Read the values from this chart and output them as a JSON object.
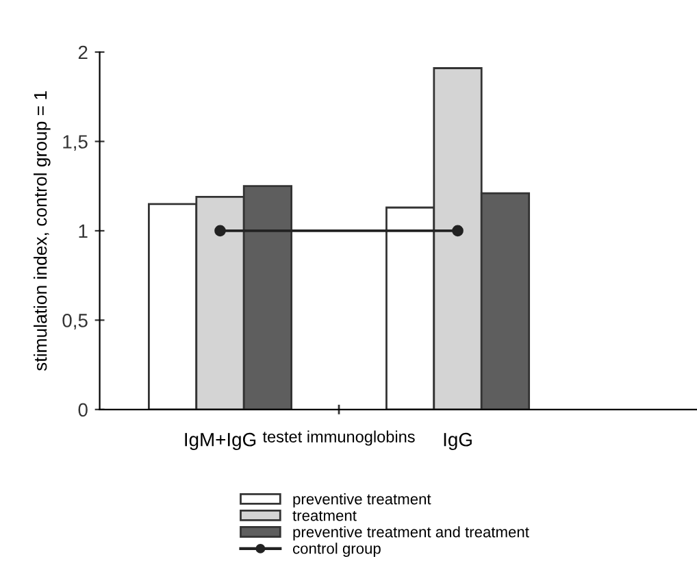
{
  "chart_data": {
    "type": "bar",
    "xlabel": "testet immunoglobins",
    "ylabel": "stimulation index, control group = 1",
    "categories": [
      "IgM+IgG",
      "IgG"
    ],
    "series": [
      {
        "name": "preventive treatment",
        "color": "#ffffff",
        "values": [
          1.15,
          1.13
        ]
      },
      {
        "name": "treatment",
        "color": "#d4d4d4",
        "values": [
          1.19,
          1.91
        ]
      },
      {
        "name": "preventive treatment and treatment",
        "color": "#5e5e5e",
        "values": [
          1.25,
          1.21
        ]
      },
      {
        "name": "control group",
        "type": "line",
        "color": "#222222",
        "marker": "circle",
        "values": [
          1,
          1
        ]
      }
    ],
    "ylim": [
      0,
      2
    ],
    "yticks": [
      0,
      {
        "value": 0.5,
        "label": "0,5"
      },
      1,
      {
        "value": 1.5,
        "label": "1,5"
      },
      2
    ],
    "grid": false,
    "legend": "bottom"
  }
}
